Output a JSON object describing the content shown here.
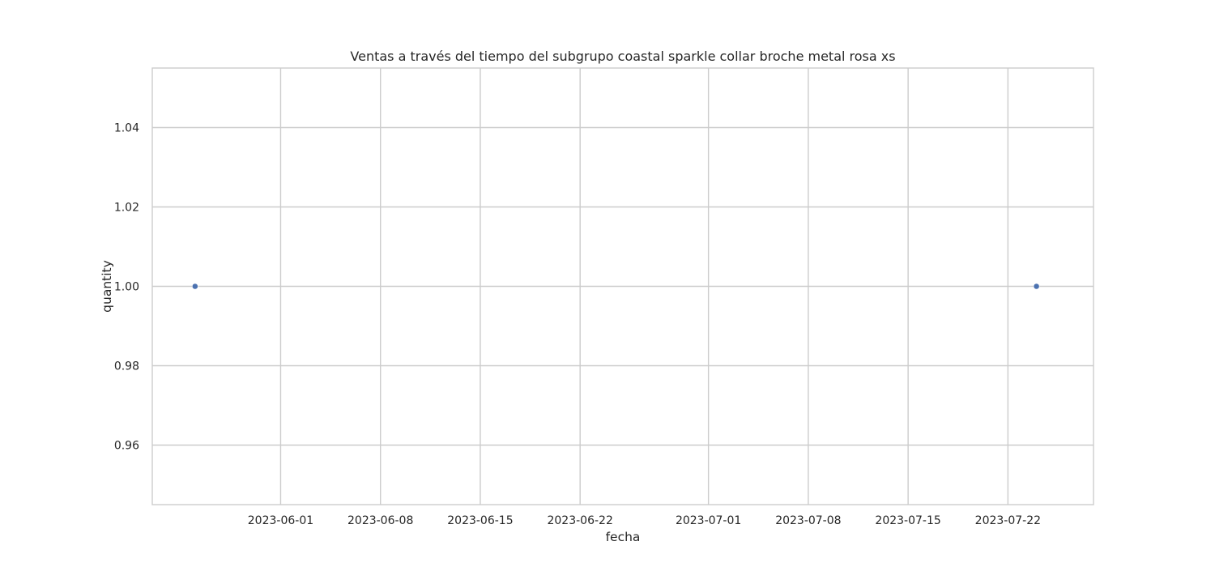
{
  "chart_data": {
    "type": "scatter",
    "title": "Ventas a través del tiempo del subgrupo coastal sparkle collar broche metal rosa xs",
    "xlabel": "fecha",
    "ylabel": "quantity",
    "x_type": "date",
    "xlim": [
      "2023-05-23",
      "2023-07-28"
    ],
    "ylim": [
      0.945,
      1.055
    ],
    "x_ticks": [
      "2023-06-01",
      "2023-06-08",
      "2023-06-15",
      "2023-06-22",
      "2023-07-01",
      "2023-07-08",
      "2023-07-15",
      "2023-07-22"
    ],
    "y_ticks": [
      0.96,
      0.98,
      1.0,
      1.02,
      1.04
    ],
    "y_tick_labels": [
      "0.96",
      "0.98",
      "1.00",
      "1.02",
      "1.04"
    ],
    "grid": true,
    "series": [
      {
        "x": [
          "2023-05-26",
          "2023-07-24"
        ],
        "y": [
          1.0,
          1.0
        ],
        "color": "#4c72b0"
      }
    ],
    "colors": {
      "background": "#ffffff",
      "grid": "#cccccc",
      "frame": "#cccccc",
      "text": "#262626",
      "point": "#4c72b0"
    }
  }
}
